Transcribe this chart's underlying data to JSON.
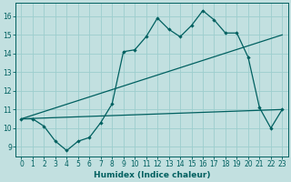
{
  "xlabel": "Humidex (Indice chaleur)",
  "bg_color": "#c2e0e0",
  "line_color": "#006060",
  "grid_color": "#9ccece",
  "xlim": [
    -0.5,
    23.5
  ],
  "ylim": [
    8.5,
    16.7
  ],
  "yticks": [
    9,
    10,
    11,
    12,
    13,
    14,
    15,
    16
  ],
  "xticks": [
    0,
    1,
    2,
    3,
    4,
    5,
    6,
    7,
    8,
    9,
    10,
    11,
    12,
    13,
    14,
    15,
    16,
    17,
    18,
    19,
    20,
    21,
    22,
    23
  ],
  "line1_x": [
    0,
    1,
    2,
    3,
    4,
    5,
    6,
    7,
    8,
    9,
    10,
    11,
    12,
    13,
    14,
    15,
    16,
    17,
    18,
    19,
    20,
    21,
    22,
    23
  ],
  "line1_y": [
    10.5,
    10.5,
    10.1,
    9.3,
    8.8,
    9.3,
    9.5,
    10.3,
    11.3,
    14.1,
    14.2,
    14.9,
    15.9,
    15.3,
    14.9,
    15.5,
    16.3,
    15.8,
    15.1,
    15.1,
    13.8,
    11.1,
    10.0,
    11.0
  ],
  "line2_x": [
    0,
    23
  ],
  "line2_y": [
    10.5,
    15.0
  ],
  "line3_x": [
    0,
    23
  ],
  "line3_y": [
    10.5,
    11.0
  ],
  "tick_fontsize": 5.5,
  "xlabel_fontsize": 6.5
}
